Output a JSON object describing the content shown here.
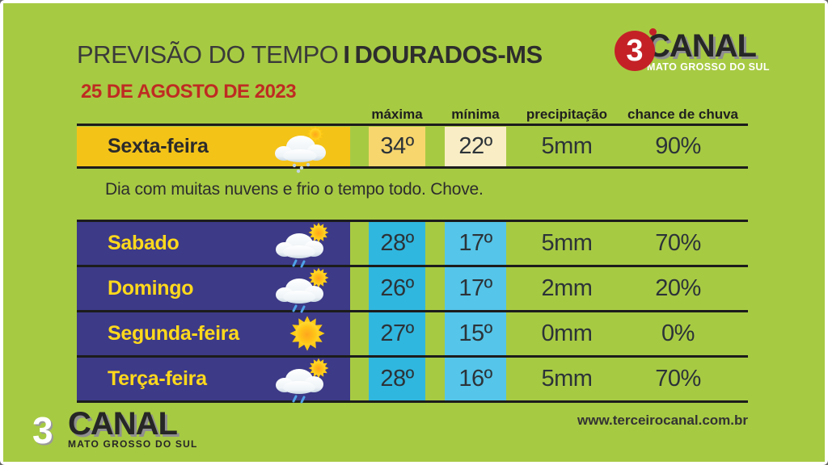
{
  "header": {
    "title": "PREVISÃO DO TEMPO",
    "separator": "I",
    "location": "DOURADOS-MS",
    "date": "25 DE AGOSTO DE 2023"
  },
  "logo": {
    "number": "3",
    "name": "CANAL",
    "region": "MATO GROSSO DO SUL"
  },
  "columns": {
    "max": "máxima",
    "min": "mínima",
    "precipitation": "precipitação",
    "rain_chance": "chance de chuva"
  },
  "today": {
    "day": "Sexta-feira",
    "icon": "cloud-rain",
    "max": "34º",
    "min": "22º",
    "precipitation": "5mm",
    "rain_chance": "90%",
    "description": "Dia com muitas nuvens e frio o tempo todo. Chove."
  },
  "forecast": [
    {
      "day": "Sabado",
      "icon": "sun-cloud-rain",
      "max": "28º",
      "min": "17º",
      "precipitation": "5mm",
      "rain_chance": "70%"
    },
    {
      "day": "Domingo",
      "icon": "sun-cloud-rain",
      "max": "26º",
      "min": "17º",
      "precipitation": "2mm",
      "rain_chance": "20%"
    },
    {
      "day": "Segunda-feira",
      "icon": "sun",
      "max": "27º",
      "min": "15º",
      "precipitation": "0mm",
      "rain_chance": "0%"
    },
    {
      "day": "Terça-feira",
      "icon": "sun-cloud-rain",
      "max": "28º",
      "min": "16º",
      "precipitation": "5mm",
      "rain_chance": "70%"
    }
  ],
  "footer": {
    "website": "www.terceirocanal.com.br"
  },
  "theme": {
    "bg": "#A7CA43",
    "date_red": "#BF2B22",
    "brand_red": "#C42127",
    "gold": "#F4C318",
    "gold_light": "#F8D66E",
    "cream": "#F9EDC6",
    "indigo": "#3D3A87",
    "day_yellow": "#FFD91C",
    "cyan": "#30B7DF",
    "cyan_light": "#55C5E9"
  }
}
